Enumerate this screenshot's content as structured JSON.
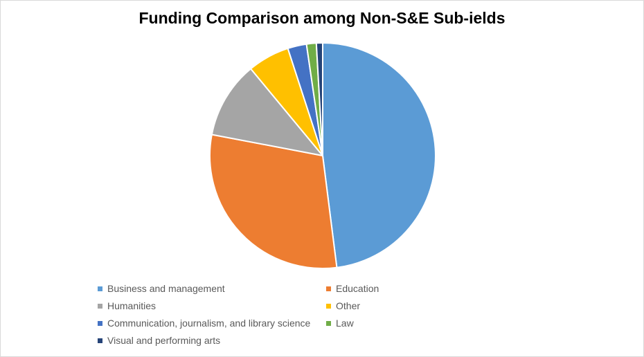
{
  "chart_data": {
    "type": "pie",
    "title": "Funding Comparison among Non-S&E Sub-ields",
    "legend_position": "bottom",
    "slices": [
      {
        "label": "Business and management",
        "value": 48.0,
        "color": "#5b9bd5"
      },
      {
        "label": "Education",
        "value": 30.0,
        "color": "#ed7d31"
      },
      {
        "label": "Humanities",
        "value": 11.0,
        "color": "#a5a5a5"
      },
      {
        "label": "Other",
        "value": 6.0,
        "color": "#ffc000"
      },
      {
        "label": "Communication, journalism, and library science",
        "value": 2.7,
        "color": "#4472c4"
      },
      {
        "label": "Law",
        "value": 1.4,
        "color": "#70ad47"
      },
      {
        "label": "Visual and performing arts",
        "value": 0.9,
        "color": "#264478"
      }
    ]
  }
}
